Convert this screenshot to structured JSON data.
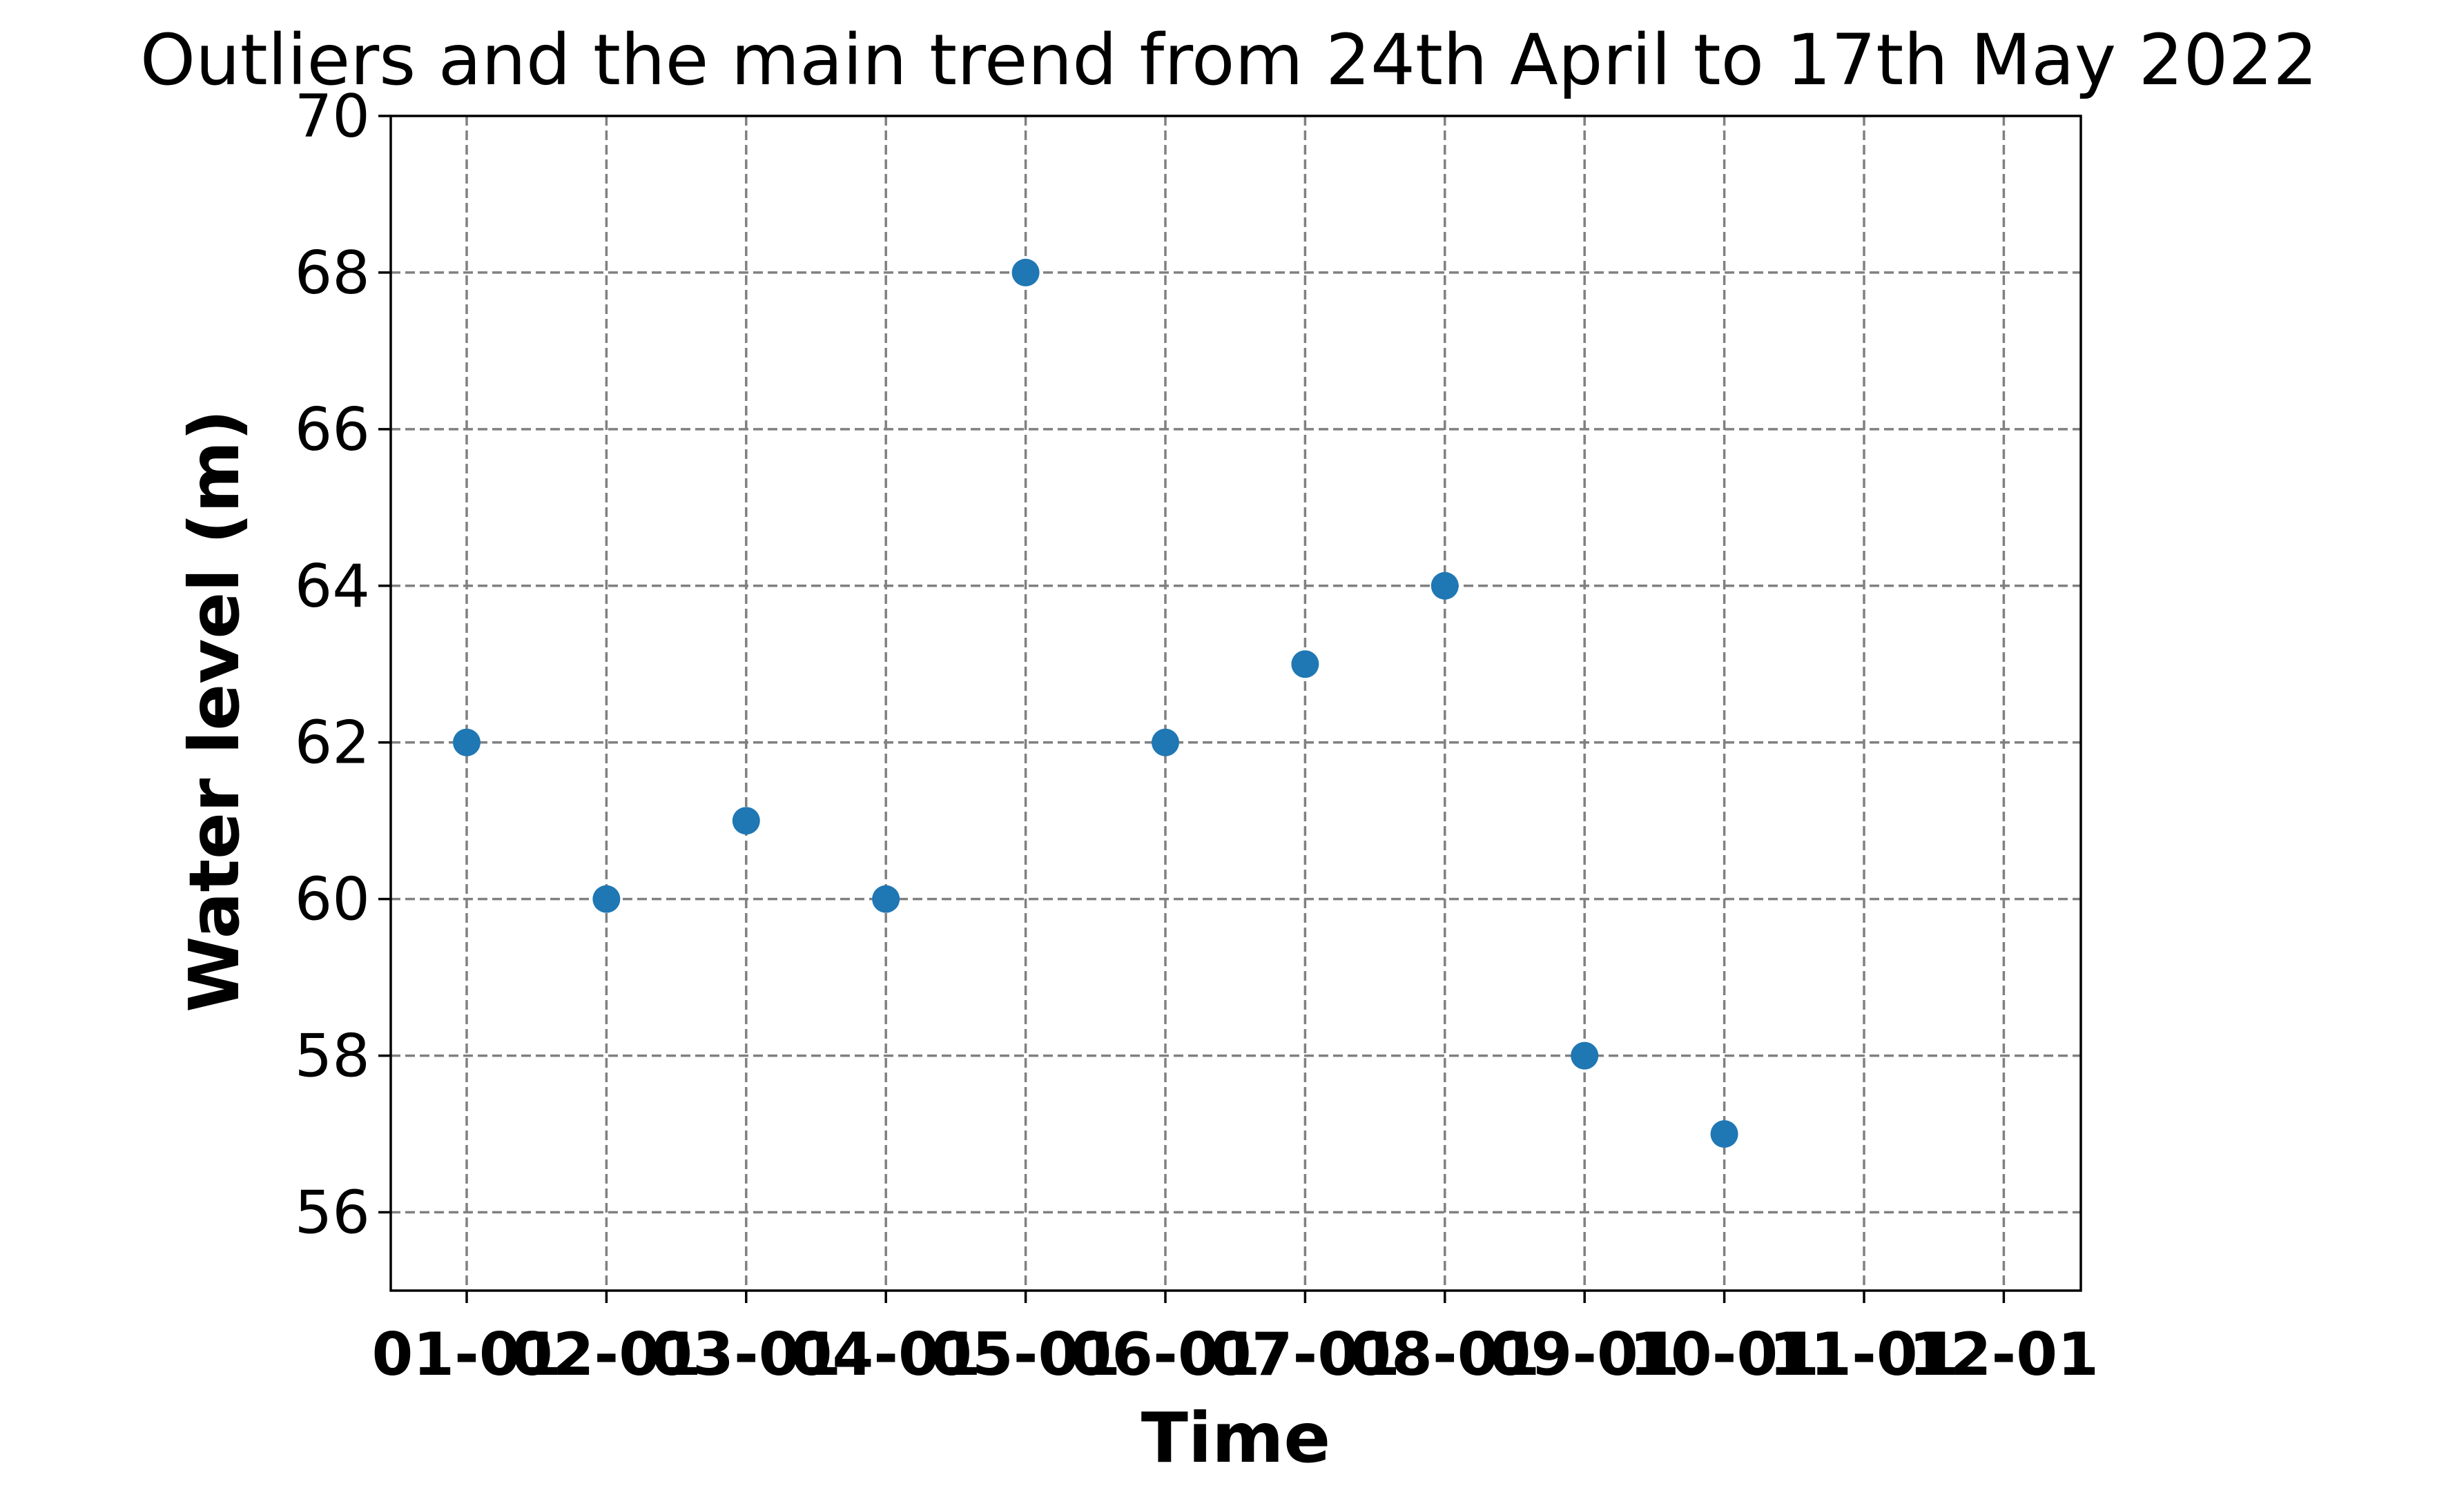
{
  "chart_data": {
    "type": "scatter",
    "title": "Outliers and the main trend from 24th April to 17th May 2022",
    "xlabel": "Time",
    "ylabel": "Water level (m)",
    "x_ticks": [
      "01-01",
      "02-01",
      "03-01",
      "04-01",
      "05-01",
      "06-01",
      "07-01",
      "08-01",
      "09-01",
      "10-01",
      "11-01",
      "12-01"
    ],
    "x": [
      "01-01",
      "02-01",
      "03-01",
      "04-01",
      "05-01",
      "06-01",
      "07-01",
      "08-01",
      "09-01",
      "10-01"
    ],
    "y": [
      62,
      60,
      61,
      60,
      68,
      62,
      63,
      64,
      58,
      57
    ],
    "ylim": [
      55,
      70
    ],
    "y_ticks": [
      56,
      58,
      60,
      62,
      64,
      66,
      68,
      70
    ],
    "grid": true,
    "marker_color": "#1f77b4"
  }
}
